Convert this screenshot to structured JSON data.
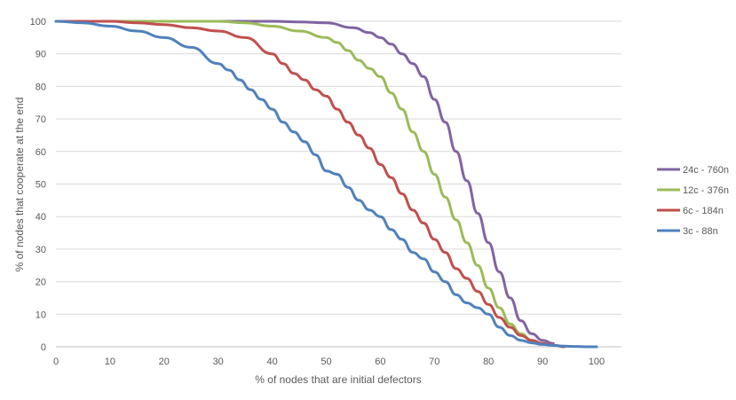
{
  "chart_data": {
    "type": "line",
    "xlabel": "% of nodes that are initial defectors",
    "ylabel": "% of nodes that cooperate at the end",
    "xlim": [
      0,
      100
    ],
    "ylim": [
      0,
      100
    ],
    "x_ticks": [
      0,
      10,
      20,
      30,
      40,
      50,
      60,
      70,
      80,
      90,
      100
    ],
    "y_ticks": [
      0,
      10,
      20,
      30,
      40,
      50,
      60,
      70,
      80,
      90,
      100
    ],
    "grid": "horizontal",
    "legend_position": "right",
    "series": [
      {
        "name": "24c - 760n",
        "color": "#8064A2",
        "x": [
          0,
          10,
          20,
          30,
          40,
          45,
          50,
          55,
          58,
          60,
          62,
          64,
          66,
          68,
          70,
          72,
          74,
          76,
          78,
          80,
          82,
          84,
          86,
          88,
          90,
          92
        ],
        "y": [
          100,
          100,
          100,
          100,
          100,
          99.8,
          99.5,
          98,
          96.5,
          95,
          93,
          90,
          87,
          83,
          76,
          69,
          60,
          51,
          41,
          32,
          23,
          15,
          8,
          4,
          2,
          1
        ]
      },
      {
        "name": "12c - 376n",
        "color": "#9BBB59",
        "x": [
          0,
          10,
          20,
          30,
          35,
          40,
          45,
          50,
          52,
          54,
          56,
          58,
          60,
          62,
          64,
          66,
          68,
          70,
          72,
          74,
          76,
          78,
          80,
          82,
          84,
          86,
          88,
          90,
          92,
          94
        ],
        "y": [
          100,
          100,
          100,
          100,
          99.5,
          98.5,
          97,
          95,
          93.5,
          91,
          88,
          85.5,
          83,
          78,
          73,
          66,
          60,
          53,
          46,
          39,
          32,
          25,
          18,
          12,
          7,
          4,
          2,
          1,
          0.5,
          0
        ]
      },
      {
        "name": "6c - 184n",
        "color": "#C0504D",
        "x": [
          0,
          10,
          15,
          20,
          25,
          30,
          35,
          40,
          42,
          44,
          46,
          48,
          50,
          52,
          54,
          56,
          58,
          60,
          62,
          64,
          66,
          68,
          70,
          72,
          74,
          76,
          78,
          80,
          82,
          84,
          86,
          88,
          90,
          92,
          94
        ],
        "y": [
          100,
          100,
          99.5,
          99,
          98,
          97,
          95,
          90,
          87,
          84,
          82,
          79,
          77,
          73,
          69,
          65,
          61,
          56,
          52,
          47,
          42,
          38,
          33,
          29,
          24,
          21,
          17,
          13,
          9,
          6,
          3.5,
          2,
          1,
          0.5,
          0
        ]
      },
      {
        "name": "3c - 88n",
        "color": "#4F81BD",
        "x": [
          0,
          5,
          10,
          15,
          20,
          25,
          30,
          32,
          34,
          36,
          38,
          40,
          42,
          44,
          46,
          48,
          50,
          52,
          54,
          56,
          58,
          60,
          62,
          64,
          66,
          68,
          70,
          72,
          74,
          76,
          78,
          80,
          82,
          84,
          86,
          88,
          90,
          92,
          94,
          96,
          98,
          100
        ],
        "y": [
          100,
          99.5,
          98.5,
          97,
          95,
          92,
          87,
          85,
          82,
          79,
          76,
          73,
          69,
          66,
          63,
          59,
          54,
          53,
          49,
          45,
          42,
          40,
          36,
          33,
          29,
          27,
          23,
          20,
          16,
          13.5,
          12,
          10,
          6,
          3.5,
          2,
          1.2,
          0.7,
          0.4,
          0.2,
          0.1,
          0,
          0
        ]
      }
    ],
    "legend_order": [
      0,
      1,
      2,
      3
    ]
  }
}
